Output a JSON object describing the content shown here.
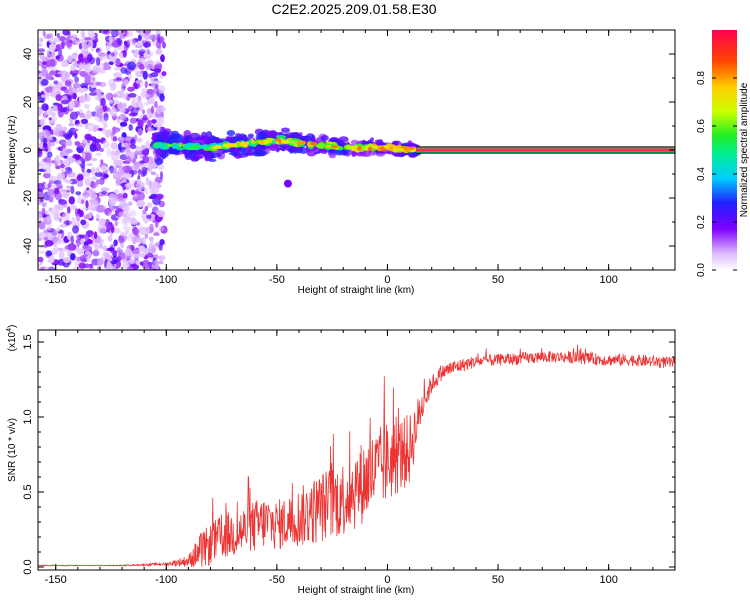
{
  "page": {
    "title": "C2E2.2025.209.01.58.E30"
  },
  "chart_data": [
    {
      "type": "heatmap",
      "title": "C2E2.2025.209.01.58.E30",
      "xlabel": "Height of straight line (km)",
      "ylabel": "Frequency (Hz)",
      "xlim": [
        -158,
        130
      ],
      "ylim": [
        -50,
        50
      ],
      "xticks": [
        -150,
        -100,
        -50,
        0,
        50,
        100
      ],
      "yticks": [
        -40,
        -20,
        0,
        20,
        40
      ],
      "grid": false,
      "colorbar": {
        "label": "Normalized spectral amplitude",
        "range": [
          0,
          1
        ],
        "ticks": [
          "0.0",
          "0.2",
          "0.4",
          "0.6",
          "0.8"
        ]
      },
      "regions": [
        {
          "name": "noise",
          "x_range": [
            -158,
            -105
          ],
          "freq_range": [
            -50,
            50
          ],
          "amplitude": [
            0.05,
            0.25
          ]
        },
        {
          "name": "transition",
          "x_range": [
            -105,
            13
          ],
          "center_freq": [
            0,
            4
          ],
          "width_hz": [
            3,
            8
          ],
          "amplitude": [
            0.2,
            0.85
          ]
        },
        {
          "name": "tone",
          "x_range": [
            13,
            130
          ],
          "center_freq": 0,
          "amplitude": 1.0
        }
      ],
      "center_line": {
        "x": [
          -105,
          -80,
          -60,
          -50,
          -40,
          -30,
          -20,
          -10,
          0,
          13
        ],
        "freq": [
          2,
          1,
          3,
          4,
          3,
          2,
          1,
          1,
          1,
          0
        ]
      },
      "outlier": {
        "x": -45,
        "freq": -14
      }
    },
    {
      "type": "line",
      "xlabel": "Height of straight line (km)",
      "ylabel": "SNR (10 * v/v)",
      "yscale_label": "(x10",
      "yscale_exp": "4",
      "scale_close": ")",
      "xlim": [
        -158,
        130
      ],
      "ylim": [
        -0.02,
        1.58
      ],
      "xticks": [
        -150,
        -100,
        -50,
        0,
        50,
        100
      ],
      "yticks": [
        0.0,
        0.5,
        1.0,
        1.5
      ],
      "ytick_labels": [
        "0.0",
        "0.5",
        "1.0",
        "1.5"
      ],
      "grid": false,
      "series": [
        {
          "color": "#ee3333",
          "x": [
            -158,
            -120,
            -100,
            -90,
            -85,
            -80,
            -75,
            -70,
            -65,
            -60,
            -55,
            -50,
            -45,
            -40,
            -35,
            -30,
            -25,
            -20,
            -15,
            -10,
            -5,
            0,
            5,
            10,
            15,
            20,
            25,
            30,
            40,
            50,
            60,
            70,
            80,
            90,
            100,
            110,
            120,
            130
          ],
          "y": [
            0.01,
            0.01,
            0.02,
            0.04,
            0.1,
            0.15,
            0.2,
            0.22,
            0.24,
            0.27,
            0.3,
            0.28,
            0.3,
            0.33,
            0.36,
            0.4,
            0.43,
            0.46,
            0.52,
            0.58,
            0.64,
            0.7,
            0.74,
            0.78,
            1.05,
            1.22,
            1.3,
            1.33,
            1.37,
            1.38,
            1.39,
            1.4,
            1.4,
            1.39,
            1.38,
            1.38,
            1.37,
            1.36
          ],
          "noise": [
            0.003,
            0.003,
            0.01,
            0.04,
            0.12,
            0.14,
            0.15,
            0.16,
            0.17,
            0.18,
            0.18,
            0.17,
            0.18,
            0.2,
            0.22,
            0.24,
            0.25,
            0.26,
            0.28,
            0.28,
            0.28,
            0.28,
            0.26,
            0.24,
            0.12,
            0.06,
            0.05,
            0.05,
            0.04,
            0.04,
            0.04,
            0.04,
            0.04,
            0.04,
            0.04,
            0.04,
            0.04,
            0.04
          ]
        }
      ]
    }
  ]
}
